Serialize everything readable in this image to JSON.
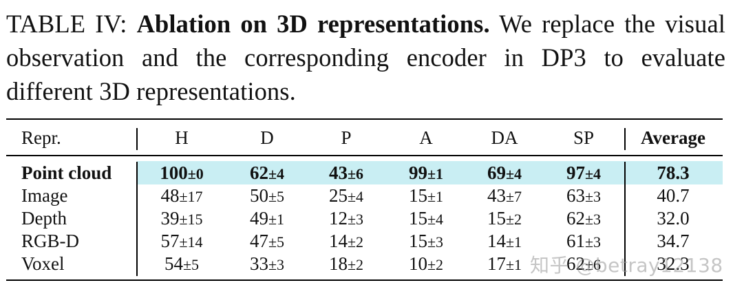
{
  "caption": {
    "label": "TABLE IV: ",
    "bold": "Ablation on 3D representations.",
    "text": " We replace the visual observation and the corresponding encoder in DP3 to evaluate different 3D representations."
  },
  "table": {
    "headers": [
      "Repr.",
      "H",
      "D",
      "P",
      "A",
      "DA",
      "SP",
      "Average"
    ],
    "rows": [
      {
        "repr": "Point cloud",
        "cells": [
          [
            "100",
            "±0"
          ],
          [
            "62",
            "±4"
          ],
          [
            "43",
            "±6"
          ],
          [
            "99",
            "±1"
          ],
          [
            "69",
            "±4"
          ],
          [
            "97",
            "±4"
          ]
        ],
        "average": "78.3",
        "highlight": true
      },
      {
        "repr": "Image",
        "cells": [
          [
            "48",
            "±17"
          ],
          [
            "50",
            "±5"
          ],
          [
            "25",
            "±4"
          ],
          [
            "15",
            "±1"
          ],
          [
            "43",
            "±7"
          ],
          [
            "63",
            "±3"
          ]
        ],
        "average": "40.7"
      },
      {
        "repr": "Depth",
        "cells": [
          [
            "39",
            "±15"
          ],
          [
            "49",
            "±1"
          ],
          [
            "12",
            "±3"
          ],
          [
            "15",
            "±4"
          ],
          [
            "15",
            "±2"
          ],
          [
            "62",
            "±3"
          ]
        ],
        "average": "32.0"
      },
      {
        "repr": "RGB-D",
        "cells": [
          [
            "57",
            "±14"
          ],
          [
            "47",
            "±5"
          ],
          [
            "14",
            "±2"
          ],
          [
            "15",
            "±3"
          ],
          [
            "14",
            "±1"
          ],
          [
            "61",
            "±3"
          ]
        ],
        "average": "34.7"
      },
      {
        "repr": "Voxel",
        "cells": [
          [
            "54",
            "±5"
          ],
          [
            "33",
            "±3"
          ],
          [
            "18",
            "±2"
          ],
          [
            "10",
            "±2"
          ],
          [
            "17",
            "±1"
          ],
          [
            "62",
            "±6"
          ]
        ],
        "average": "32.3"
      }
    ]
  },
  "watermark": "知乎 @betray12138"
}
